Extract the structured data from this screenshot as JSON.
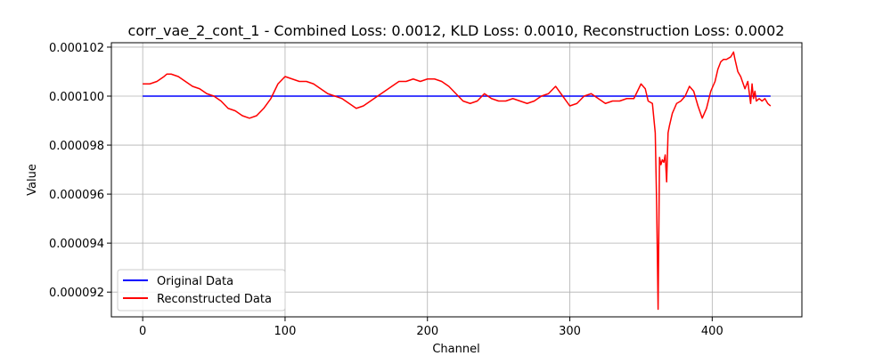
{
  "chart_data": {
    "type": "line",
    "title": "corr_vae_2_cont_1 - Combined Loss: 0.0012, KLD Loss: 0.0010, Reconstruction Loss: 0.0002",
    "xlabel": "Channel",
    "ylabel": "Value",
    "xlim": [
      -22,
      463
    ],
    "ylim": [
      9.099e-05,
      0.00010218
    ],
    "x_ticks": [
      0,
      100,
      200,
      300,
      400
    ],
    "x_tick_labels": [
      "0",
      "100",
      "200",
      "300",
      "400"
    ],
    "y_ticks": [
      9.2e-05,
      9.4e-05,
      9.6e-05,
      9.8e-05,
      0.0001,
      0.000102
    ],
    "y_tick_labels": [
      "0.000092",
      "0.000094",
      "0.000096",
      "0.000098",
      "0.000100",
      "0.000102"
    ],
    "grid": true,
    "legend_position": "lower-left",
    "series": [
      {
        "name": "Original Data",
        "color": "#0000ff",
        "x": [
          0,
          441
        ],
        "y": [
          0.0001,
          0.0001
        ]
      },
      {
        "name": "Reconstructed Data",
        "color": "#ff0000",
        "x": [
          0,
          5,
          10,
          15,
          17,
          20,
          25,
          30,
          35,
          40,
          45,
          50,
          55,
          60,
          65,
          70,
          75,
          80,
          85,
          90,
          95,
          100,
          105,
          110,
          115,
          120,
          125,
          130,
          135,
          140,
          145,
          150,
          155,
          160,
          165,
          170,
          175,
          180,
          185,
          190,
          195,
          200,
          205,
          210,
          215,
          220,
          225,
          230,
          235,
          240,
          245,
          250,
          255,
          260,
          265,
          270,
          275,
          280,
          285,
          290,
          295,
          300,
          305,
          310,
          315,
          320,
          325,
          330,
          335,
          340,
          345,
          350,
          353,
          355,
          358,
          360,
          361,
          362,
          363,
          364,
          365,
          366,
          367,
          368,
          369,
          370,
          372,
          375,
          378,
          381,
          384,
          387,
          390,
          393,
          396,
          399,
          402,
          404,
          406,
          408,
          410,
          413,
          415,
          416,
          418,
          420,
          423,
          425,
          427,
          428,
          429,
          430,
          431,
          433,
          435,
          437,
          439,
          441
        ],
        "y": [
          0.0001005,
          0.0001005,
          0.0001006,
          0.0001008,
          0.0001009,
          0.0001009,
          0.0001008,
          0.0001006,
          0.0001004,
          0.0001003,
          0.0001001,
          0.0001,
          9.98e-05,
          9.95e-05,
          9.94e-05,
          9.92e-05,
          9.91e-05,
          9.92e-05,
          9.95e-05,
          9.99e-05,
          0.0001005,
          0.0001008,
          0.0001007,
          0.0001006,
          0.0001006,
          0.0001005,
          0.0001003,
          0.0001001,
          0.0001,
          9.99e-05,
          9.97e-05,
          9.95e-05,
          9.96e-05,
          9.98e-05,
          0.0001,
          0.0001002,
          0.0001004,
          0.0001006,
          0.0001006,
          0.0001007,
          0.0001006,
          0.0001007,
          0.0001007,
          0.0001006,
          0.0001004,
          0.0001001,
          9.98e-05,
          9.97e-05,
          9.98e-05,
          0.0001001,
          9.99e-05,
          9.98e-05,
          9.98e-05,
          9.99e-05,
          9.98e-05,
          9.97e-05,
          9.98e-05,
          0.0001,
          0.0001001,
          0.0001004,
          0.0001,
          9.96e-05,
          9.97e-05,
          0.0001,
          0.0001001,
          9.99e-05,
          9.97e-05,
          9.98e-05,
          9.98e-05,
          9.99e-05,
          9.99e-05,
          0.0001005,
          0.0001003,
          9.98e-05,
          9.97e-05,
          9.85e-05,
          9.55e-05,
          9.13e-05,
          9.75e-05,
          9.72e-05,
          9.74e-05,
          9.73e-05,
          9.76e-05,
          9.65e-05,
          9.85e-05,
          9.88e-05,
          9.93e-05,
          9.97e-05,
          9.98e-05,
          0.0001,
          0.0001004,
          0.0001002,
          9.96e-05,
          9.91e-05,
          9.95e-05,
          0.0001002,
          0.0001006,
          0.0001011,
          0.0001014,
          0.0001015,
          0.0001015,
          0.0001016,
          0.0001018,
          0.0001015,
          0.000101,
          0.0001008,
          0.0001003,
          0.0001006,
          9.97e-05,
          0.0001005,
          9.99e-05,
          0.0001002,
          9.98e-05,
          9.99e-05,
          9.98e-05,
          9.99e-05,
          9.97e-05,
          9.96e-05
        ]
      }
    ]
  }
}
